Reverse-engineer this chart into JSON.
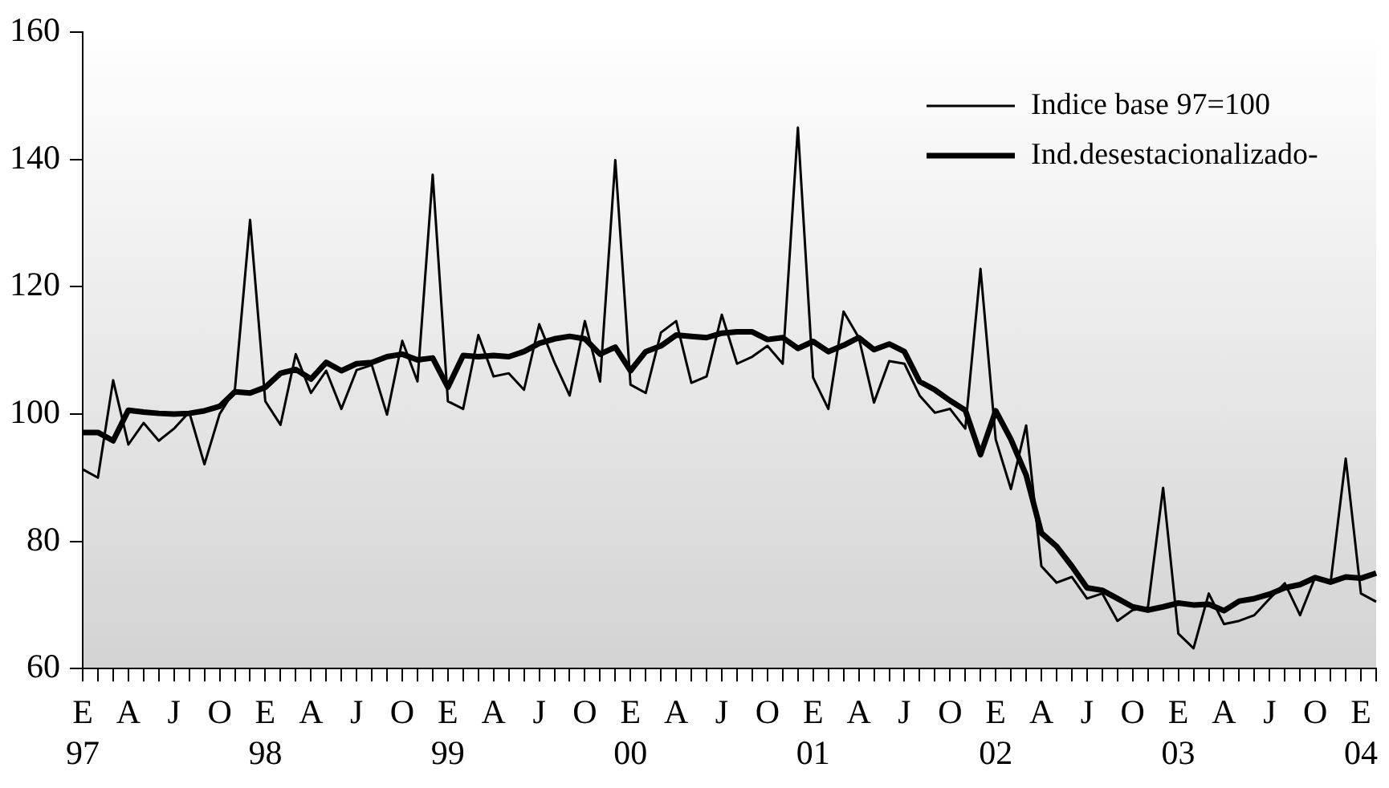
{
  "chart_data": {
    "type": "line",
    "categories": [
      "E\n97",
      null,
      null,
      "A",
      null,
      null,
      "J",
      null,
      null,
      "O",
      null,
      null,
      "E\n98",
      null,
      null,
      "A",
      null,
      null,
      "J",
      null,
      null,
      "O",
      null,
      null,
      "E\n99",
      null,
      null,
      "A",
      null,
      null,
      "J",
      null,
      null,
      "O",
      null,
      null,
      "E\n00",
      null,
      null,
      "A",
      null,
      null,
      "J",
      null,
      null,
      "O",
      null,
      null,
      "E\n01",
      null,
      null,
      "A",
      null,
      null,
      "J",
      null,
      null,
      "O",
      null,
      null,
      "E\n02",
      null,
      null,
      "A",
      null,
      null,
      "J",
      null,
      null,
      "O",
      null,
      null,
      "E\n03",
      null,
      null,
      "A",
      null,
      null,
      "J",
      null,
      null,
      "O",
      null,
      null,
      "E\n04",
      null
    ],
    "series": [
      {
        "name": "Indice base 97=100",
        "color": "#000000",
        "values": [
          91.3,
          90.0,
          105.3,
          95.2,
          98.6,
          95.8,
          97.7,
          100.3,
          92.1,
          100.0,
          103.8,
          130.5,
          102.0,
          98.3,
          109.4,
          103.3,
          106.8,
          100.8,
          106.9,
          107.7,
          99.9,
          111.5,
          105.1,
          137.6,
          102.0,
          100.8,
          112.4,
          105.9,
          106.4,
          103.8,
          114.1,
          108.1,
          102.9,
          114.6,
          105.1,
          139.9,
          104.6,
          103.3,
          112.8,
          114.6,
          104.9,
          105.9,
          115.6,
          107.9,
          109.0,
          110.7,
          107.9,
          145.0,
          105.7,
          100.8,
          116.1,
          112.0,
          101.8,
          108.3,
          107.9,
          102.9,
          100.2,
          100.8,
          97.7,
          122.8,
          96.0,
          88.2,
          98.2,
          76.1,
          73.5,
          74.4,
          71.0,
          71.8,
          67.5,
          69.2,
          69.6,
          88.4,
          65.5,
          63.2,
          71.8,
          67.0,
          67.5,
          68.4,
          71.0,
          73.4,
          68.4,
          74.4,
          73.4,
          93.0,
          71.8,
          70.5
        ]
      },
      {
        "name": "Ind.desestacionalizado-",
        "color": "#000000",
        "values": [
          97.1,
          97.1,
          95.8,
          100.6,
          100.3,
          100.1,
          100.0,
          100.1,
          100.5,
          101.2,
          103.5,
          103.3,
          104.2,
          106.4,
          107.0,
          105.5,
          108.1,
          106.8,
          107.9,
          108.1,
          109.0,
          109.4,
          108.5,
          108.8,
          104.2,
          109.2,
          109.0,
          109.2,
          109.0,
          109.8,
          111.1,
          111.8,
          112.2,
          111.8,
          109.4,
          110.5,
          106.8,
          109.8,
          110.7,
          112.4,
          112.2,
          112.0,
          112.7,
          112.9,
          112.9,
          111.7,
          112.0,
          110.3,
          111.4,
          109.8,
          110.8,
          112.0,
          110.1,
          111.0,
          109.8,
          105.1,
          103.8,
          102.1,
          100.6,
          93.6,
          100.5,
          96.0,
          90.4,
          81.3,
          79.2,
          76.1,
          72.7,
          72.3,
          71.0,
          69.7,
          69.2,
          69.7,
          70.3,
          70.0,
          70.1,
          69.1,
          70.6,
          71.0,
          71.7,
          72.7,
          73.2,
          74.3,
          73.6,
          74.4,
          74.2,
          75.0
        ]
      }
    ],
    "ylim": [
      60,
      160
    ],
    "yticks": [
      60,
      80,
      100,
      120,
      140,
      160
    ],
    "grid": false,
    "legend": "top right",
    "marker": "none",
    "line_style": "solid"
  }
}
